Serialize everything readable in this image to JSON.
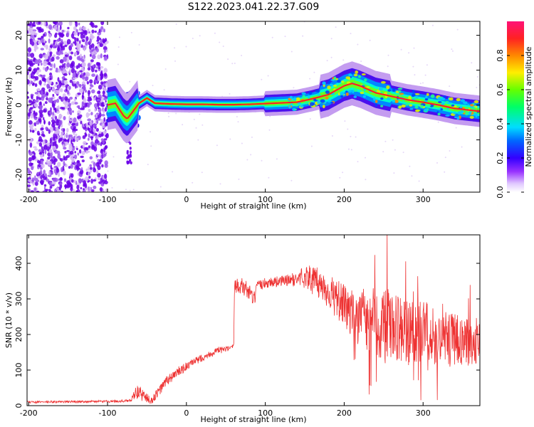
{
  "figure": {
    "title": "S122.2023.041.22.37.G09"
  },
  "chart_data": [
    {
      "type": "heatmap",
      "xlabel": "Height of straight line (km)",
      "ylabel": "Frequency (Hz)",
      "xlim": [
        -202,
        372
      ],
      "ylim": [
        -25,
        24
      ],
      "x_ticks": [
        -200,
        -100,
        0,
        100,
        200,
        300
      ],
      "y_ticks": [
        -20,
        -10,
        0,
        10,
        20
      ],
      "colorbar": {
        "label": "Normalized spectral amplitude",
        "range": [
          0,
          1
        ],
        "ticks": [
          "0.0",
          "0.2",
          "0.4",
          "0.6",
          "0.8"
        ]
      },
      "ridge": {
        "x": [
          -100,
          -90,
          -80,
          -75,
          -70,
          -60,
          -50,
          -40,
          -20,
          0,
          20,
          40,
          60,
          80,
          100,
          120,
          140,
          160,
          180,
          200,
          210,
          220,
          240,
          260,
          280,
          300,
          320,
          340,
          360,
          372
        ],
        "y": [
          0,
          0.5,
          -3,
          -4,
          -2.5,
          0.5,
          2,
          0.5,
          0.3,
          0.2,
          0.2,
          0.1,
          0.1,
          0.2,
          0.4,
          0.6,
          0.8,
          1.8,
          3,
          5.5,
          6.2,
          5.5,
          3.5,
          2.5,
          1.5,
          0.8,
          0,
          -1,
          -1.5,
          -1.8
        ]
      }
    },
    {
      "type": "line",
      "xlabel": "Height of straight line (km)",
      "ylabel": "SNR (10 * v/v)",
      "xlim": [
        -202,
        372
      ],
      "ylim": [
        0,
        480
      ],
      "x_ticks": [
        -200,
        -100,
        0,
        100,
        200,
        300
      ],
      "y_ticks": [
        0,
        100,
        200,
        300,
        400
      ],
      "series": [
        {
          "color": "#ee3333",
          "envelope": {
            "x": [
              -202,
              -100,
              -70,
              -65,
              -55,
              -45,
              -35,
              -25,
              -10,
              0,
              20,
              40,
              55,
              60,
              61,
              65,
              80,
              85,
              90,
              100,
              120,
              140,
              150,
              170,
              190,
              210,
              230,
              250,
              270,
              290,
              310,
              330,
              350,
              372
            ],
            "mean": [
              10,
              12,
              14,
              40,
              30,
              12,
              40,
              70,
              95,
              110,
              135,
              155,
              160,
              165,
              330,
              345,
              320,
              290,
              335,
              345,
              350,
              355,
              365,
              340,
              300,
              260,
              240,
              230,
              210,
              210,
              200,
              190,
              180,
              175
            ],
            "amplitude": [
              3,
              3,
              4,
              20,
              20,
              10,
              15,
              15,
              15,
              12,
              10,
              10,
              8,
              10,
              20,
              25,
              25,
              25,
              15,
              15,
              15,
              20,
              35,
              45,
              55,
              65,
              90,
              110,
              100,
              95,
              80,
              75,
              70,
              60
            ]
          }
        }
      ]
    }
  ]
}
